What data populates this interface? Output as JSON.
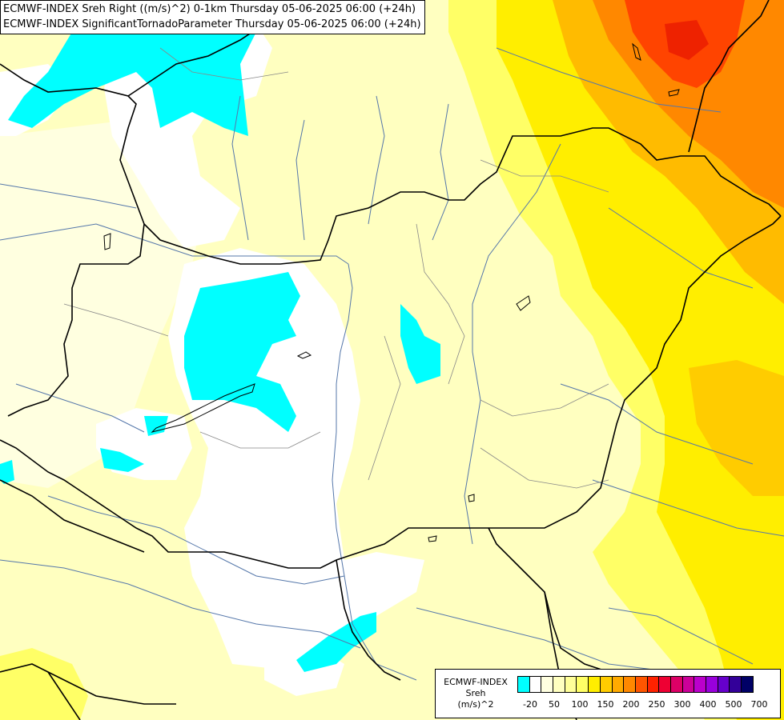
{
  "title": {
    "line1": "ECMWF-INDEX Sreh Right ((m/s)^2) 0-1km Thursday 05-06-2025 06:00 (+24h)",
    "line2": "ECMWF-INDEX SignificantTornadoParameter Thursday 05-06-2025 06:00 (+24h)"
  },
  "legend": {
    "title_line1": "ECMWF-INDEX",
    "title_line2": "Sreh",
    "title_line3": "(m/s)^2",
    "colors": [
      "#00ffff",
      "#ffffff",
      "#ffffe0",
      "#ffffc0",
      "#ffff99",
      "#ffff66",
      "#ffee00",
      "#ffcc00",
      "#ffaa00",
      "#ff8800",
      "#ff5500",
      "#ff2200",
      "#ee0033",
      "#dd0066",
      "#cc0099",
      "#bb00cc",
      "#9900dd",
      "#6600cc",
      "#330099",
      "#000066"
    ],
    "ticks": [
      "-20",
      "50",
      "100",
      "150",
      "200",
      "250",
      "300",
      "400",
      "500",
      "700"
    ]
  },
  "colors": {
    "cyan": "#00ffff",
    "white": "#ffffff",
    "light_yellow": "#ffffc0",
    "yellow": "#ffff66",
    "gold": "#ffee00",
    "orange": "#ffbb00",
    "deep_orange": "#ff8800",
    "red": "#ff4400"
  }
}
